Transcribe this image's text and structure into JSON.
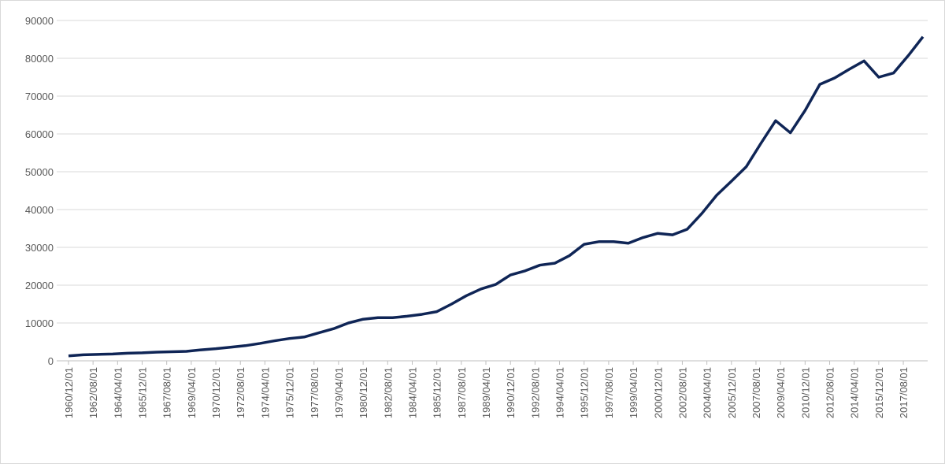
{
  "chart_data": {
    "type": "line",
    "x": [
      "1960/12/01",
      "1961/12/01",
      "1962/12/01",
      "1963/12/01",
      "1964/12/01",
      "1965/12/01",
      "1966/12/01",
      "1967/12/01",
      "1968/12/01",
      "1969/12/01",
      "1970/12/01",
      "1971/12/01",
      "1972/12/01",
      "1973/12/01",
      "1974/12/01",
      "1975/12/01",
      "1976/12/01",
      "1977/12/01",
      "1978/12/01",
      "1979/12/01",
      "1980/12/01",
      "1981/12/01",
      "1982/12/01",
      "1983/12/01",
      "1984/12/01",
      "1985/12/01",
      "1986/12/01",
      "1987/12/01",
      "1988/12/01",
      "1989/12/01",
      "1990/12/01",
      "1991/12/01",
      "1992/12/01",
      "1993/12/01",
      "1994/12/01",
      "1995/12/01",
      "1996/12/01",
      "1997/12/01",
      "1998/12/01",
      "1999/12/01",
      "2000/12/01",
      "2001/12/01",
      "2002/12/01",
      "2003/12/01",
      "2004/12/01",
      "2005/12/01",
      "2006/12/01",
      "2007/12/01",
      "2008/12/01",
      "2009/12/01",
      "2010/12/01",
      "2011/12/01",
      "2012/12/01",
      "2013/12/01",
      "2014/12/01",
      "2015/12/01",
      "2016/12/01",
      "2017/12/01",
      "2018/12/01"
    ],
    "series": [
      {
        "color": "#0f2556",
        "values": [
          1300,
          1600,
          1700,
          1800,
          2000,
          2100,
          2300,
          2400,
          2500,
          2900,
          3200,
          3600,
          4000,
          4600,
          5300,
          5900,
          6300,
          7400,
          8500,
          10000,
          11000,
          11400,
          11400,
          11800,
          12300,
          13000,
          15000,
          17200,
          19000,
          20200,
          22700,
          23800,
          25300,
          25800,
          27800,
          30800,
          31500,
          31500,
          31100,
          32600,
          33700,
          33300,
          34800,
          39000,
          43800,
          47500,
          51300,
          57500,
          63500,
          60300,
          66200,
          73100,
          74800,
          77100,
          79300,
          75000,
          76100,
          80700,
          85700
        ]
      }
    ],
    "xlim": [
      "1960/12/01",
      "2018/12/01"
    ],
    "xticks": [
      "1960/12/01",
      "1962/08/01",
      "1964/04/01",
      "1965/12/01",
      "1967/08/01",
      "1969/04/01",
      "1970/12/01",
      "1972/08/01",
      "1974/04/01",
      "1975/12/01",
      "1977/08/01",
      "1979/04/01",
      "1980/12/01",
      "1982/08/01",
      "1984/04/01",
      "1985/12/01",
      "1987/08/01",
      "1989/04/01",
      "1990/12/01",
      "1992/08/01",
      "1994/04/01",
      "1995/12/01",
      "1997/08/01",
      "1999/04/01",
      "2000/12/01",
      "2002/08/01",
      "2004/04/01",
      "2005/12/01",
      "2007/08/01",
      "2009/04/01",
      "2010/12/01",
      "2012/08/01",
      "2014/04/01",
      "2015/12/01",
      "2017/08/01"
    ],
    "ylim": [
      0,
      90000
    ],
    "yticks": [
      0,
      10000,
      20000,
      30000,
      40000,
      50000,
      60000,
      70000,
      80000,
      90000
    ],
    "grid": true
  }
}
